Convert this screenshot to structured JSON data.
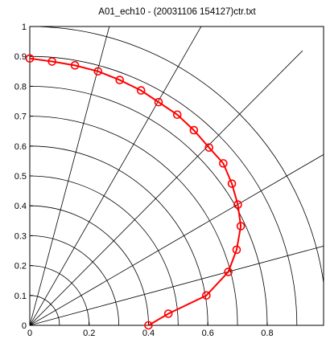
{
  "chart_data": {
    "type": "line",
    "title": "A01_ech10 - (20031106  154127)ctr.txt",
    "xlabel": "",
    "ylabel": "",
    "xlim": [
      0,
      0.99
    ],
    "ylim": [
      0,
      1
    ],
    "x_ticks": [
      0,
      0.2,
      0.4,
      0.6,
      0.8
    ],
    "y_ticks": [
      0,
      0.1,
      0.2,
      0.3,
      0.4,
      0.5,
      0.6,
      0.7,
      0.8,
      0.9,
      1
    ],
    "x_tick_labels": [
      "0",
      "0.2",
      "0.4",
      "0.6",
      "0.8"
    ],
    "y_tick_labels": [
      "0",
      "0.1",
      "0.2",
      "0.3",
      "0.4",
      "0.5",
      "0.6",
      "0.7",
      "0.8",
      "0.9",
      "1"
    ],
    "polar_grid": {
      "radii": [
        0.1,
        0.2,
        0.3,
        0.4,
        0.5,
        0.6,
        0.7,
        0.8,
        0.9,
        1.0
      ],
      "angles_deg": [
        15,
        30,
        45,
        60,
        75
      ]
    },
    "series": [
      {
        "color": "#ff0000",
        "marker": "circle",
        "x": [
          0.0,
          0.075,
          0.152,
          0.23,
          0.303,
          0.375,
          0.434,
          0.497,
          0.553,
          0.604,
          0.652,
          0.681,
          0.701,
          0.711,
          0.697,
          0.669,
          0.595,
          0.467,
          0.4
        ],
        "y": [
          0.893,
          0.883,
          0.87,
          0.85,
          0.821,
          0.786,
          0.747,
          0.705,
          0.653,
          0.595,
          0.542,
          0.474,
          0.404,
          0.332,
          0.253,
          0.179,
          0.1,
          0.039,
          0.0
        ]
      }
    ]
  }
}
